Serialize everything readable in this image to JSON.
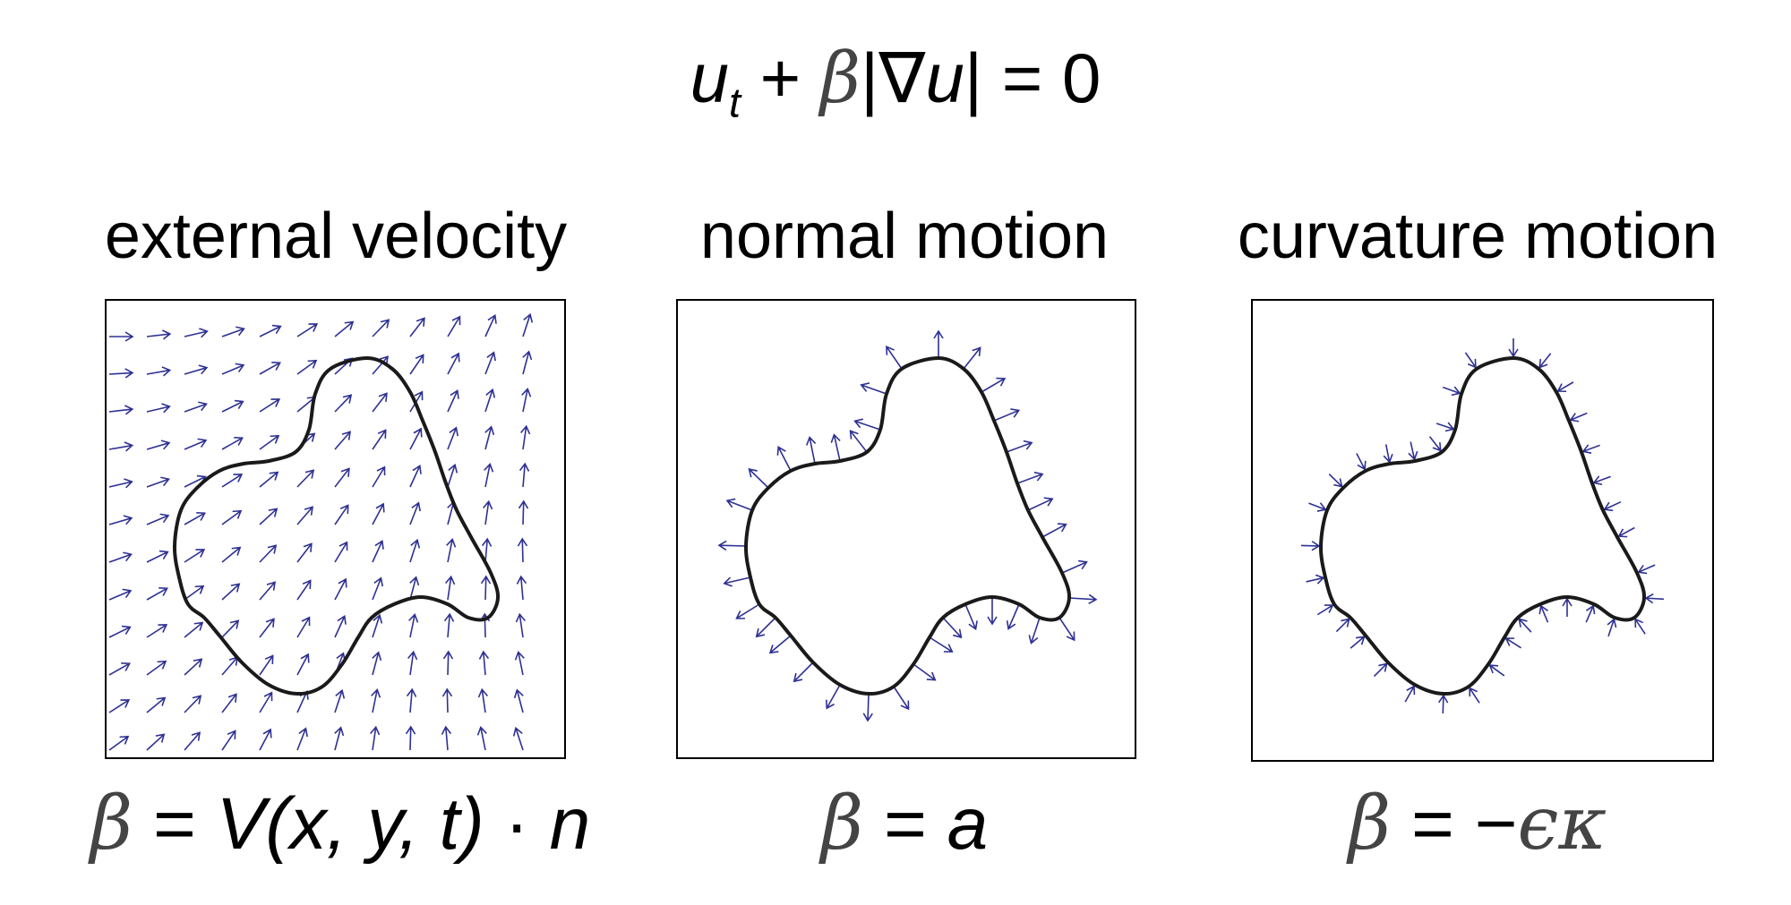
{
  "top_equation": {
    "u": "u",
    "t": "t",
    "plus": " + ",
    "beta": "β",
    "abs_open": "|",
    "nabla": "∇",
    "u2": "u",
    "abs_close": "|",
    "equals_zero": " = 0"
  },
  "panels": [
    {
      "title": "external velocity",
      "formula": {
        "beta": "β",
        "eq": " = ",
        "V": "V",
        "args": "(x, y, t)",
        "dot": " · ",
        "n": "n"
      }
    },
    {
      "title": "normal motion",
      "formula": {
        "beta": "β",
        "eq": " = ",
        "a": "a"
      }
    },
    {
      "title": "curvature motion",
      "formula": {
        "beta": "β",
        "eq": " = ",
        "neg": "−",
        "eps": "ϵ",
        "kappa": "κ"
      }
    }
  ],
  "colors": {
    "arrow": "#2e3192",
    "curve": "#1a1a1a",
    "frame": "#000000"
  }
}
